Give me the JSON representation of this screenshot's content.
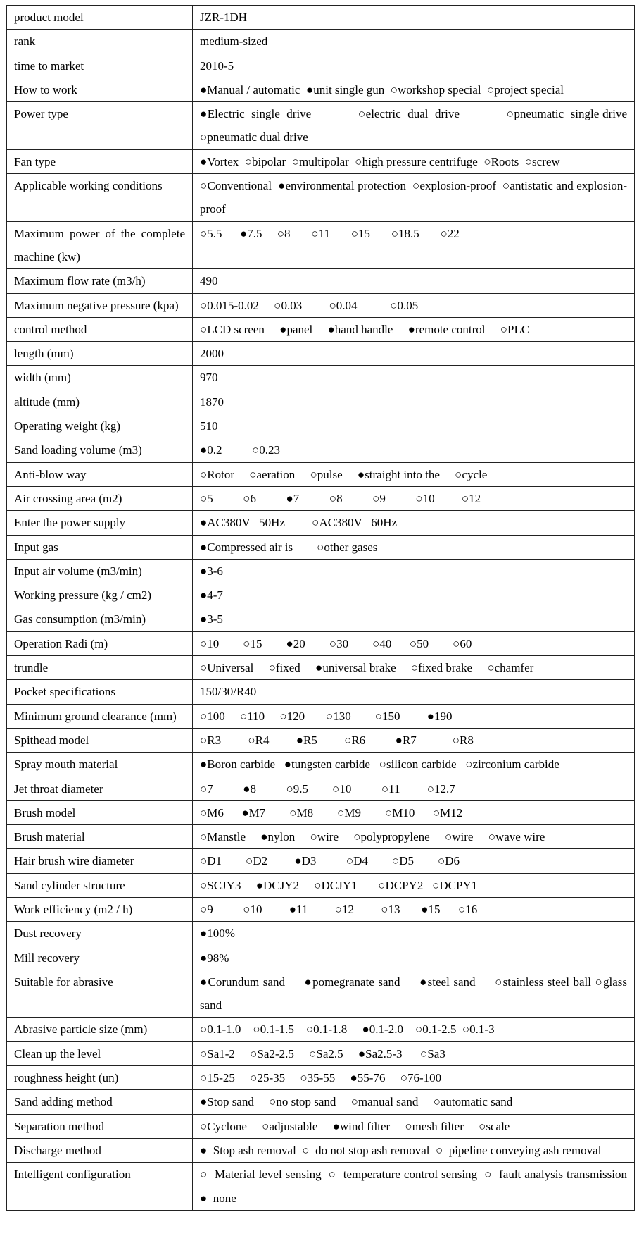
{
  "spec_table": {
    "rows": [
      {
        "label": "product model",
        "value": "JZR-1DH"
      },
      {
        "label": "rank",
        "value": "medium-sized"
      },
      {
        "label": "time to market",
        "value": "2010-5"
      },
      {
        "label": "How to work",
        "value": "●Manual / automatic  ●unit single gun  ○workshop special  ○project special"
      },
      {
        "label": "Power type",
        "value": "●Electric  single  drive              ○electric  dual  drive              ○pneumatic  single drive        ○pneumatic dual drive"
      },
      {
        "label": "Fan type",
        "value": "●Vortex  ○bipolar  ○multipolar  ○high pressure centrifuge  ○Roots  ○screw"
      },
      {
        "label": "Applicable working conditions",
        "value": "○Conventional  ●environmental protection  ○explosion-proof  ○antistatic and explosion-proof"
      },
      {
        "label": "Maximum power of the complete machine (kw)",
        "value": "○5.5      ●7.5     ○8       ○11       ○15       ○18.5       ○22"
      },
      {
        "label": "Maximum flow rate (m3/h)",
        "value": "490"
      },
      {
        "label": "Maximum negative pressure (kpa)",
        "value": "○0.015-0.02     ○0.03         ○0.04           ○0.05"
      },
      {
        "label": "control method",
        "value": "○LCD screen     ●panel     ●hand handle     ●remote control     ○PLC"
      },
      {
        "label": "length (mm)",
        "value": "2000"
      },
      {
        "label": "width (mm)",
        "value": "970"
      },
      {
        "label": "altitude (mm)",
        "value": "1870"
      },
      {
        "label": "Operating weight (kg)",
        "value": "510"
      },
      {
        "label": "Sand loading volume (m3)",
        "value": "●0.2          ○0.23"
      },
      {
        "label": "Anti-blow way",
        "value": "○Rotor     ○aeration     ○pulse     ●straight into the     ○cycle"
      },
      {
        "label": "Air crossing area (m2)",
        "value": "○5          ○6          ●7          ○8          ○9          ○10         ○12"
      },
      {
        "label": "Enter the power supply",
        "value": "●AC380V   50Hz         ○AC380V   60Hz"
      },
      {
        "label": "Input gas",
        "value": "●Compressed air is        ○other gases"
      },
      {
        "label": "Input air volume (m3/min)",
        "value": "●3-6"
      },
      {
        "label": "Working pressure (kg / cm2)",
        "value": "●4-7"
      },
      {
        "label": "Gas consumption (m3/min)",
        "value": "●3-5"
      },
      {
        "label": "Operation Radi (m)",
        "value": "○10        ○15        ●20        ○30        ○40      ○50        ○60"
      },
      {
        "label": "trundle",
        "value": "○Universal     ○fixed     ●universal brake     ○fixed brake     ○chamfer"
      },
      {
        "label": "Pocket specifications",
        "value": "150/30/R40"
      },
      {
        "label": "Minimum ground clearance (mm)",
        "value": "○100     ○110     ○120       ○130        ○150         ●190"
      },
      {
        "label": "Spithead model",
        "value": "○R3         ○R4         ●R5         ○R6          ●R7            ○R8"
      },
      {
        "label": "Spray mouth material",
        "value": "●Boron carbide   ●tungsten carbide   ○silicon carbide   ○zirconium carbide"
      },
      {
        "label": "Jet throat diameter",
        "value": "○7          ●8          ○9.5        ○10          ○11         ○12.7"
      },
      {
        "label": "Brush model",
        "value": "○M6      ●M7        ○M8        ○M9        ○M10      ○M12"
      },
      {
        "label": "Brush material",
        "value": "○Manstle     ●nylon     ○wire     ○polypropylene     ○wire     ○wave wire"
      },
      {
        "label": "Hair brush wire diameter",
        "value": "○D1        ○D2         ●D3          ○D4        ○D5        ○D6"
      },
      {
        "label": "Sand cylinder structure",
        "value": "○SCJY3     ●DCJY2     ○DCJY1       ○DCPY2   ○DCPY1"
      },
      {
        "label": "Work efficiency (m2 / h)",
        "value": "○9          ○10         ●11         ○12         ○13       ●15      ○16"
      },
      {
        "label": "Dust recovery",
        "value": "●100%"
      },
      {
        "label": "Mill recovery",
        "value": "●98%"
      },
      {
        "label": "Suitable for abrasive",
        "value": "●Corundum sand     ●pomegranate sand     ●steel sand     ○stainless steel ball ○glass sand"
      },
      {
        "label": "Abrasive particle size (mm)",
        "value": "○0.1-1.0    ○0.1-1.5    ○0.1-1.8     ●0.1-2.0    ○0.1-2.5  ○0.1-3"
      },
      {
        "label": "Clean up the level",
        "value": "○Sa1-2     ○Sa2-2.5     ○Sa2.5     ●Sa2.5-3      ○Sa3"
      },
      {
        "label": "roughness height (un)",
        "value": "○15-25     ○25-35     ○35-55     ●55-76     ○76-100"
      },
      {
        "label": "Sand adding method",
        "value": "●Stop sand     ○no stop sand     ○manual sand     ○automatic sand"
      },
      {
        "label": "Separation method",
        "value": "○Cyclone     ○adjustable     ●wind filter     ○mesh filter     ○scale"
      },
      {
        "label": "Discharge method",
        "value": "●  Stop ash removal  ○  do not stop ash removal  ○  pipeline conveying ash removal"
      },
      {
        "label": "Intelligent configuration",
        "value": "○  Material level sensing  ○  temperature control sensing  ○  fault analysis transmission  ●  none"
      }
    ]
  }
}
